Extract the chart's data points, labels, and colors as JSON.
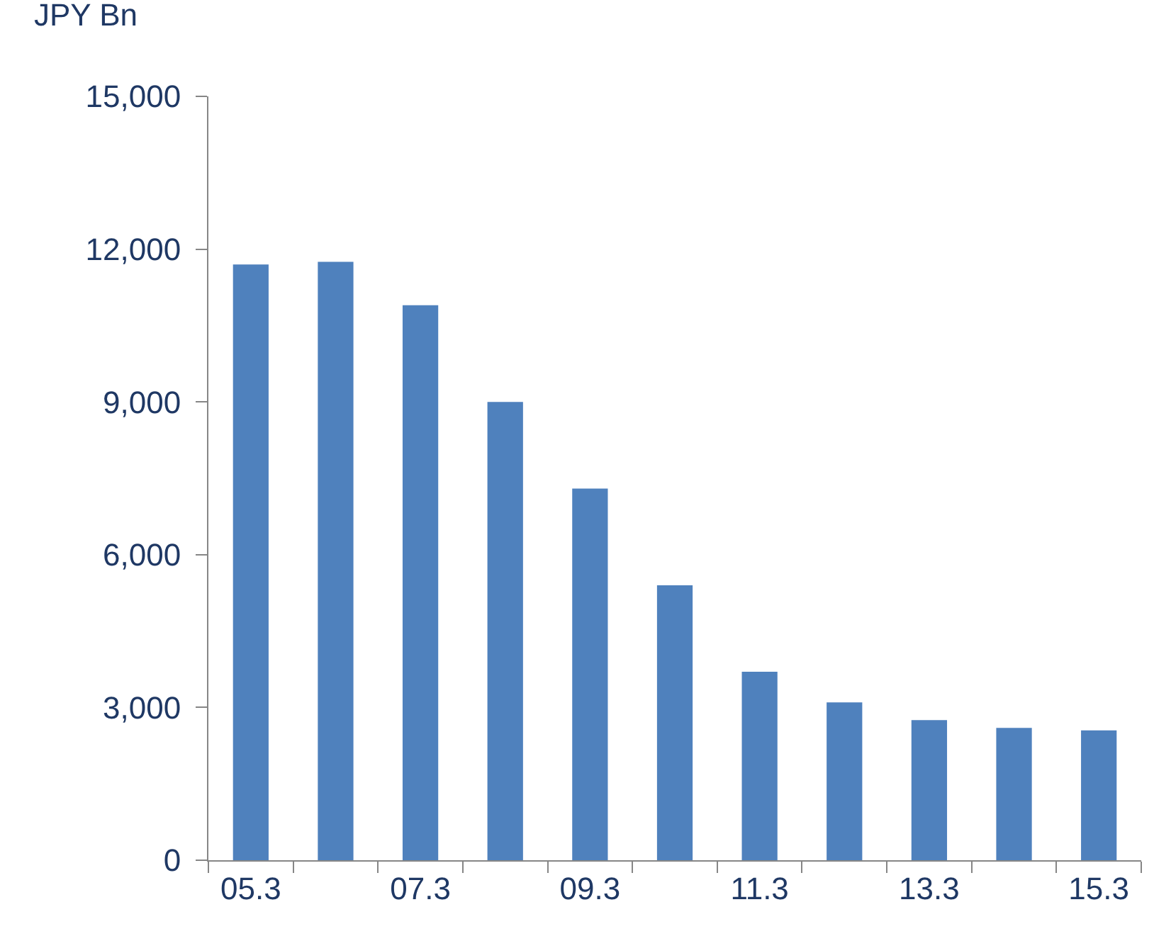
{
  "chart_data": {
    "type": "bar",
    "ylabel": "JPY Bn",
    "categories": [
      "05.3",
      null,
      "07.3",
      null,
      "09.3",
      null,
      "11.3",
      null,
      "13.3",
      null,
      "15.3"
    ],
    "values": [
      11700,
      11750,
      10900,
      9000,
      7300,
      5400,
      3700,
      3100,
      2750,
      2600,
      2550
    ],
    "color": "#4f81bd",
    "ylim": [
      0,
      15000
    ],
    "yticks": [
      {
        "value": 0,
        "label": "0"
      },
      {
        "value": 3000,
        "label": "3,000"
      },
      {
        "value": 6000,
        "label": "6,000"
      },
      {
        "value": 9000,
        "label": "9,000"
      },
      {
        "value": 12000,
        "label": "12,000"
      },
      {
        "value": 15000,
        "label": "15,000"
      }
    ],
    "grid": false,
    "legend": false
  }
}
